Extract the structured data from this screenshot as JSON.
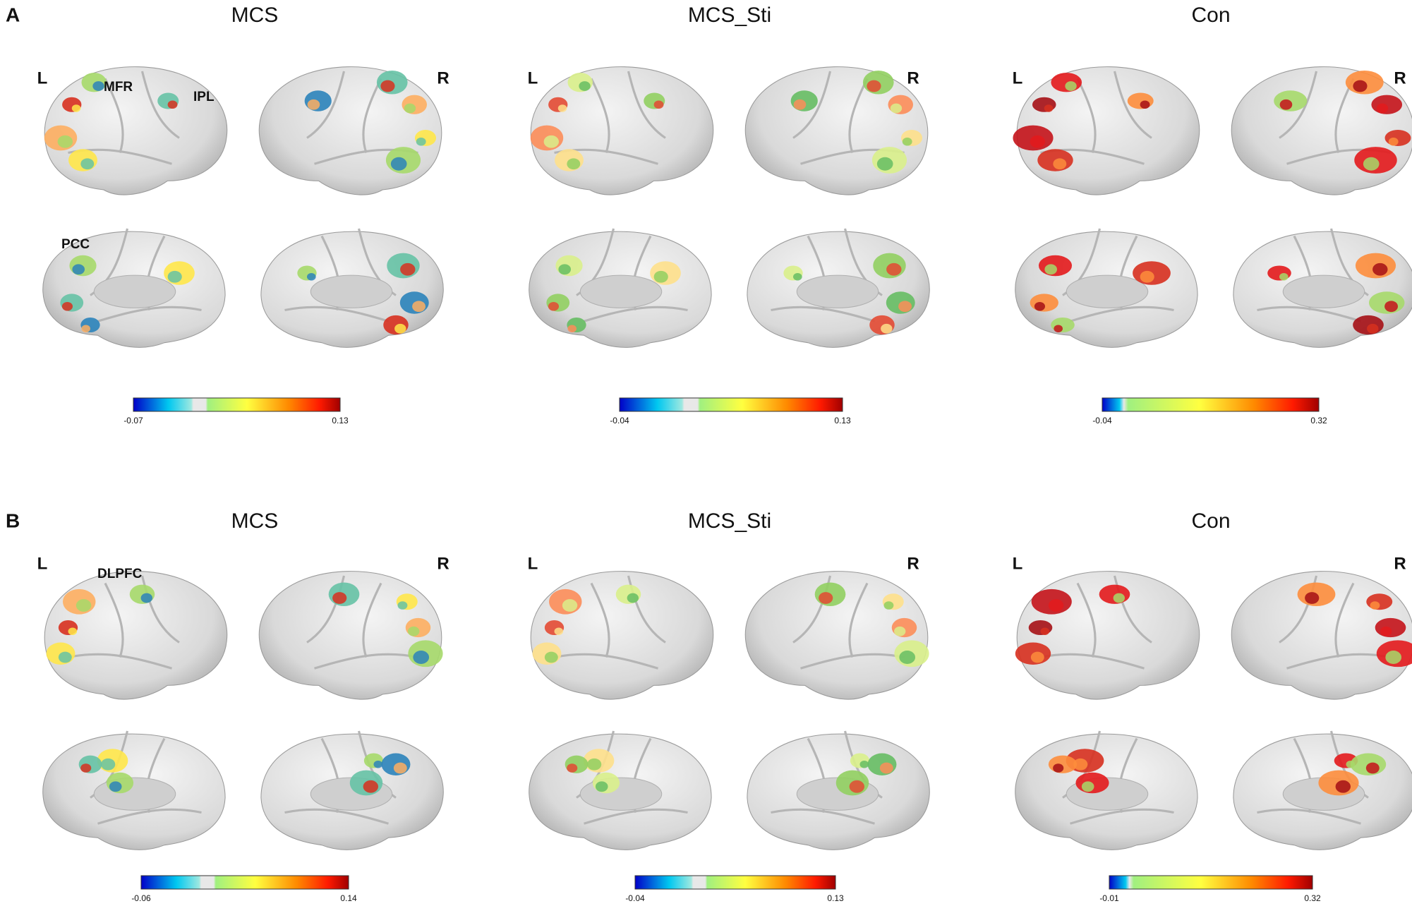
{
  "panels": [
    {
      "label": "A",
      "groups": [
        {
          "title": "MCS",
          "left": "L",
          "right": "R",
          "colorbar": {
            "min": "-0.07",
            "max": "0.13"
          },
          "annotations": [
            "MFR",
            "IPL",
            "PCC"
          ]
        },
        {
          "title": "MCS_Sti",
          "left": "L",
          "right": "R",
          "colorbar": {
            "min": "-0.04",
            "max": "0.13"
          }
        },
        {
          "title": "Con",
          "left": "L",
          "right": "R",
          "colorbar": {
            "min": "-0.04",
            "max": "0.32"
          }
        }
      ]
    },
    {
      "label": "B",
      "groups": [
        {
          "title": "MCS",
          "left": "L",
          "right": "R",
          "colorbar": {
            "min": "-0.06",
            "max": "0.14"
          },
          "annotations": [
            "DLPFC"
          ]
        },
        {
          "title": "MCS_Sti",
          "left": "L",
          "right": "R",
          "colorbar": {
            "min": "-0.04",
            "max": "0.13"
          }
        },
        {
          "title": "Con",
          "left": "L",
          "right": "R",
          "colorbar": {
            "min": "-0.01",
            "max": "0.32"
          }
        }
      ]
    }
  ]
}
